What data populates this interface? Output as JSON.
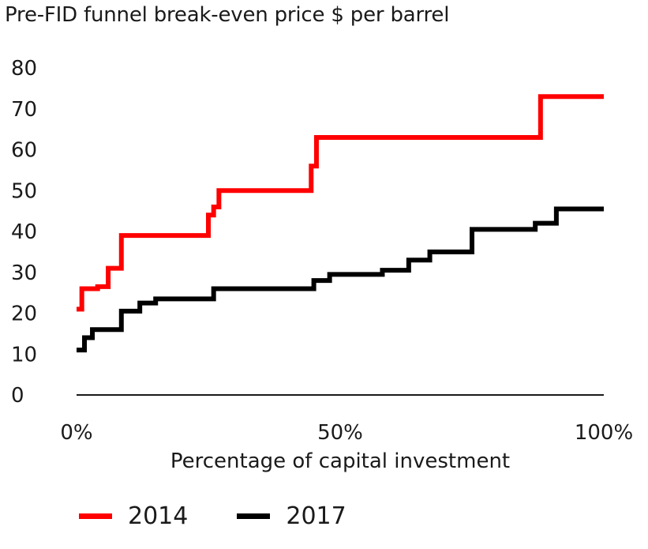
{
  "chart_data": {
    "type": "line",
    "title": "Pre-FID funnel break-even price $ per barrel",
    "xlabel": "Percentage of capital investment",
    "ylabel": "",
    "ylim": [
      0,
      80
    ],
    "xlim": [
      0,
      100
    ],
    "y_ticks": [
      "0",
      "10",
      "20",
      "30",
      "40",
      "50",
      "60",
      "70",
      "80"
    ],
    "x_ticks": [
      {
        "value": 0,
        "label": "0%"
      },
      {
        "value": 50,
        "label": "50%"
      },
      {
        "value": 100,
        "label": "100%"
      }
    ],
    "grid": false,
    "legend_position": "bottom",
    "step": true,
    "series": [
      {
        "name": "2014",
        "color": "#ff0000",
        "x": [
          0,
          1,
          4,
          6,
          8.5,
          25,
          26,
          27,
          28,
          44.5,
          45.5,
          88,
          100
        ],
        "y": [
          21,
          26,
          26.5,
          31,
          39,
          44,
          46,
          50,
          50,
          56,
          63,
          73,
          73
        ]
      },
      {
        "name": "2017",
        "color": "#000000",
        "x": [
          0,
          1.5,
          3,
          8.5,
          12,
          15,
          26,
          45,
          48,
          58,
          63,
          67,
          75,
          87,
          91,
          100
        ],
        "y": [
          11,
          14,
          16,
          20.5,
          22.5,
          23.5,
          26,
          28,
          29.5,
          30.5,
          33,
          35,
          40.5,
          42,
          45.5,
          45.5
        ]
      }
    ]
  }
}
